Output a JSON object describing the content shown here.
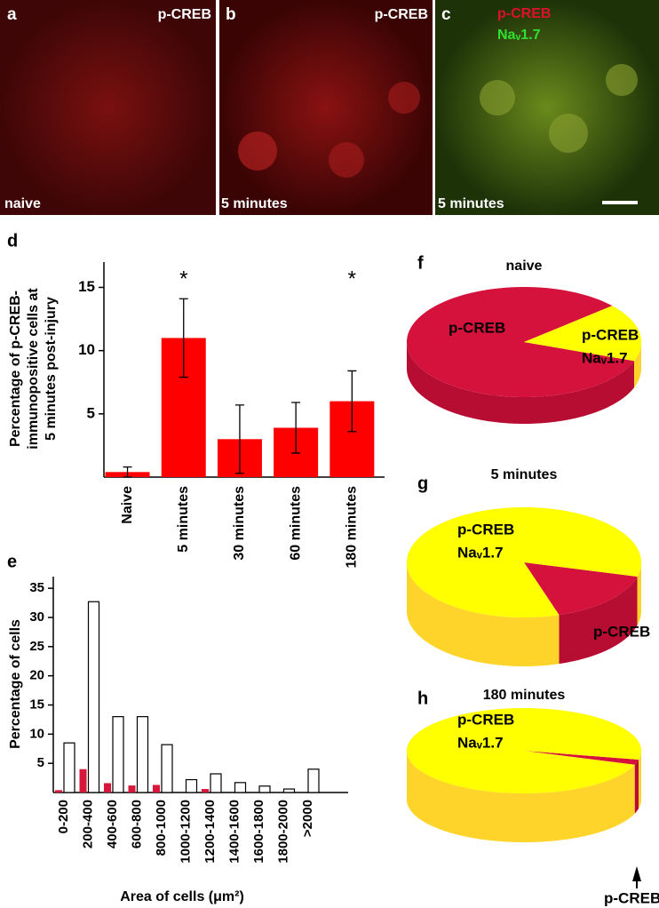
{
  "micrographs": [
    {
      "panel": "a",
      "labels": [
        "p-CREB"
      ],
      "caption": "naive"
    },
    {
      "panel": "b",
      "labels": [
        "p-CREB"
      ],
      "caption": "5 minutes"
    },
    {
      "panel": "c",
      "labels": [
        "p-CREB",
        "Naᵥ1.7"
      ],
      "caption": "5 minutes"
    }
  ],
  "chart_data": [
    {
      "panel": "d",
      "type": "bar",
      "ylabel": [
        "Percentage of p-CREB-",
        "immunopositive cells at",
        "5 minutes post-injury"
      ],
      "categories": [
        "Naive",
        "5 minutes",
        "30 minutes",
        "60 minutes",
        "180 minutes"
      ],
      "values": [
        0.4,
        11,
        3,
        3.9,
        6
      ],
      "errors": [
        0.4,
        3.1,
        2.7,
        2,
        2.4
      ],
      "significance": [
        null,
        "*",
        null,
        null,
        "*"
      ],
      "color": "#ff0000",
      "ylim": [
        0,
        17
      ],
      "yticks": [
        5,
        10,
        15
      ]
    },
    {
      "panel": "e",
      "type": "bar",
      "xlabel": "Area of cells (μm²)",
      "ylabel": "Percentage of cells",
      "categories": [
        "0-200",
        "200-400",
        "400-600",
        "600-800",
        "800-1000",
        "1000-1200",
        "1200-1400",
        "1400-1600",
        "1600-1800",
        "1800-2000",
        ">2000"
      ],
      "series": [
        {
          "color": "#d6173a",
          "values": [
            0.4,
            4,
            1.6,
            1.2,
            1.3,
            0,
            0.6,
            0,
            0,
            0,
            0
          ]
        },
        {
          "color": "#ffffff",
          "values": [
            8.5,
            32.7,
            13,
            13,
            8.2,
            2.2,
            3.2,
            1.7,
            1.1,
            0.6,
            4
          ]
        }
      ],
      "ylim": [
        0,
        37
      ],
      "yticks": [
        5,
        10,
        15,
        20,
        25,
        30,
        35
      ]
    },
    {
      "panel": "f",
      "type": "pie",
      "title": "naive",
      "categories": [
        [
          "p-CREB"
        ],
        [
          "p-CREB",
          "Naᵥ1.7"
        ]
      ],
      "values": [
        83,
        17
      ],
      "colors": [
        "#d4123c",
        "#ffff00"
      ],
      "side_colors": [
        "#b80d33",
        "#ffd42a"
      ]
    },
    {
      "panel": "g",
      "type": "pie",
      "title": "5 minutes",
      "categories": [
        [
          "p-CREB"
        ],
        [
          "p-CREB",
          "Naᵥ1.7"
        ]
      ],
      "values": [
        16,
        84
      ],
      "colors": [
        "#d4123c",
        "#ffff00"
      ],
      "side_colors": [
        "#b80d33",
        "#ffd42a"
      ]
    },
    {
      "panel": "h",
      "type": "pie",
      "title": "180 minutes",
      "categories": [
        [
          "p-CREB"
        ],
        [
          "p-CREB",
          "Naᵥ1.7"
        ]
      ],
      "values": [
        2,
        98
      ],
      "colors": [
        "#d4123c",
        "#ffff00"
      ],
      "side_colors": [
        "#b80d33",
        "#ffd42a"
      ]
    }
  ]
}
